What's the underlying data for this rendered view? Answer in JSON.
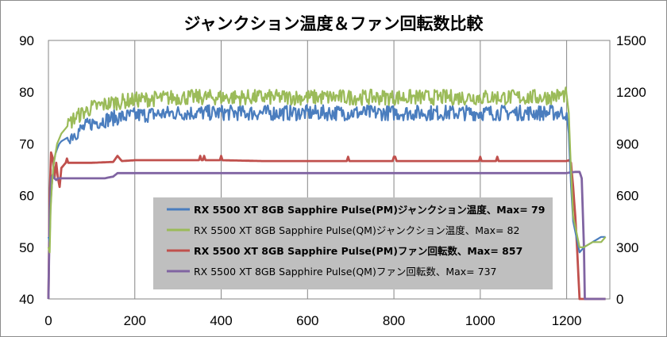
{
  "chart_data": {
    "type": "line",
    "title": "ジャンクション温度＆ファン回転数比較",
    "xlabel": "",
    "ylabel_left": "",
    "ylabel_right": "",
    "xlim": [
      0,
      1300
    ],
    "ylim_left": [
      40,
      90
    ],
    "ylim_right": [
      0,
      1500
    ],
    "x_ticks": [
      0,
      200,
      400,
      600,
      800,
      1000,
      1200
    ],
    "y_left_ticks": [
      40,
      50,
      60,
      70,
      80,
      90
    ],
    "y_right_ticks": [
      0,
      300,
      600,
      900,
      1200,
      1500
    ],
    "grid": "vertical",
    "legend_position": "bottom-center",
    "series": [
      {
        "name": "RX 5500 XT 8GB Sapphire Pulse(PM)ジャンクション温度、Max= 79",
        "axis": "left",
        "color": "#4a7dbe",
        "legend_bold": true,
        "x": [
          0,
          3,
          5,
          8,
          12,
          16,
          20,
          25,
          30,
          40,
          50,
          60,
          80,
          100,
          150,
          200,
          300,
          400,
          500,
          600,
          700,
          800,
          900,
          1000,
          1100,
          1150,
          1200,
          1205,
          1210,
          1215,
          1220,
          1225,
          1230,
          1240,
          1260,
          1280,
          1290
        ],
        "y": [
          52,
          51,
          58,
          62,
          66,
          68,
          69,
          70,
          70.5,
          71,
          71.5,
          72,
          73,
          74,
          75,
          75.5,
          76,
          76,
          76,
          76,
          76,
          76,
          76,
          76,
          76,
          76,
          76,
          72,
          62,
          55,
          53,
          51,
          49,
          50,
          51,
          52,
          52
        ]
      },
      {
        "name": "RX 5500 XT 8GB Sapphire Pulse(QM)ジャンクション温度、Max= 82",
        "axis": "left",
        "color": "#9bbb59",
        "legend_bold": false,
        "x": [
          0,
          3,
          5,
          8,
          12,
          16,
          20,
          25,
          30,
          40,
          50,
          60,
          80,
          100,
          150,
          200,
          300,
          400,
          500,
          600,
          700,
          800,
          900,
          1000,
          1100,
          1150,
          1200,
          1205,
          1210,
          1215,
          1220,
          1225,
          1230,
          1240,
          1260,
          1280,
          1290
        ],
        "y": [
          50,
          49,
          57,
          62,
          66,
          68,
          70,
          71,
          72,
          73,
          74,
          75,
          76,
          77,
          78,
          78.5,
          79,
          79,
          79,
          79,
          79,
          79,
          79,
          79,
          79,
          79,
          79.5,
          76,
          65,
          56,
          54,
          52,
          50,
          50,
          51,
          51,
          52
        ]
      },
      {
        "name": "RX 5500 XT 8GB Sapphire Pulse(PM)ファン回転数、Max= 857",
        "axis": "right",
        "color": "#c0504d",
        "legend_bold": true,
        "x": [
          0,
          3,
          6,
          10,
          14,
          18,
          22,
          26,
          30,
          40,
          60,
          100,
          150,
          160,
          170,
          200,
          300,
          400,
          500,
          600,
          700,
          800,
          900,
          1000,
          1100,
          1150,
          1200,
          1205,
          1210,
          1215,
          1220,
          1224,
          1228,
          1230,
          1260,
          1290
        ],
        "y": [
          0,
          600,
          850,
          820,
          700,
          790,
          700,
          650,
          760,
          790,
          790,
          790,
          795,
          830,
          800,
          805,
          805,
          805,
          800,
          800,
          800,
          800,
          800,
          800,
          800,
          800,
          800,
          805,
          790,
          650,
          480,
          300,
          100,
          0,
          0,
          0
        ]
      },
      {
        "name": "RX 5500 XT 8GB Sapphire Pulse(QM)ファン回転数、Max= 737",
        "axis": "right",
        "color": "#8064a2",
        "legend_bold": false,
        "x": [
          0,
          3,
          6,
          10,
          14,
          18,
          22,
          30,
          60,
          100,
          130,
          150,
          160,
          200,
          400,
          600,
          800,
          1000,
          1100,
          1150,
          1200,
          1210,
          1220,
          1230,
          1235,
          1240,
          1242,
          1260,
          1290
        ],
        "y": [
          0,
          500,
          700,
          720,
          700,
          690,
          700,
          700,
          700,
          700,
          700,
          710,
          730,
          730,
          730,
          730,
          730,
          730,
          730,
          730,
          730,
          735,
          737,
          737,
          700,
          300,
          0,
          0,
          0
        ]
      }
    ]
  }
}
